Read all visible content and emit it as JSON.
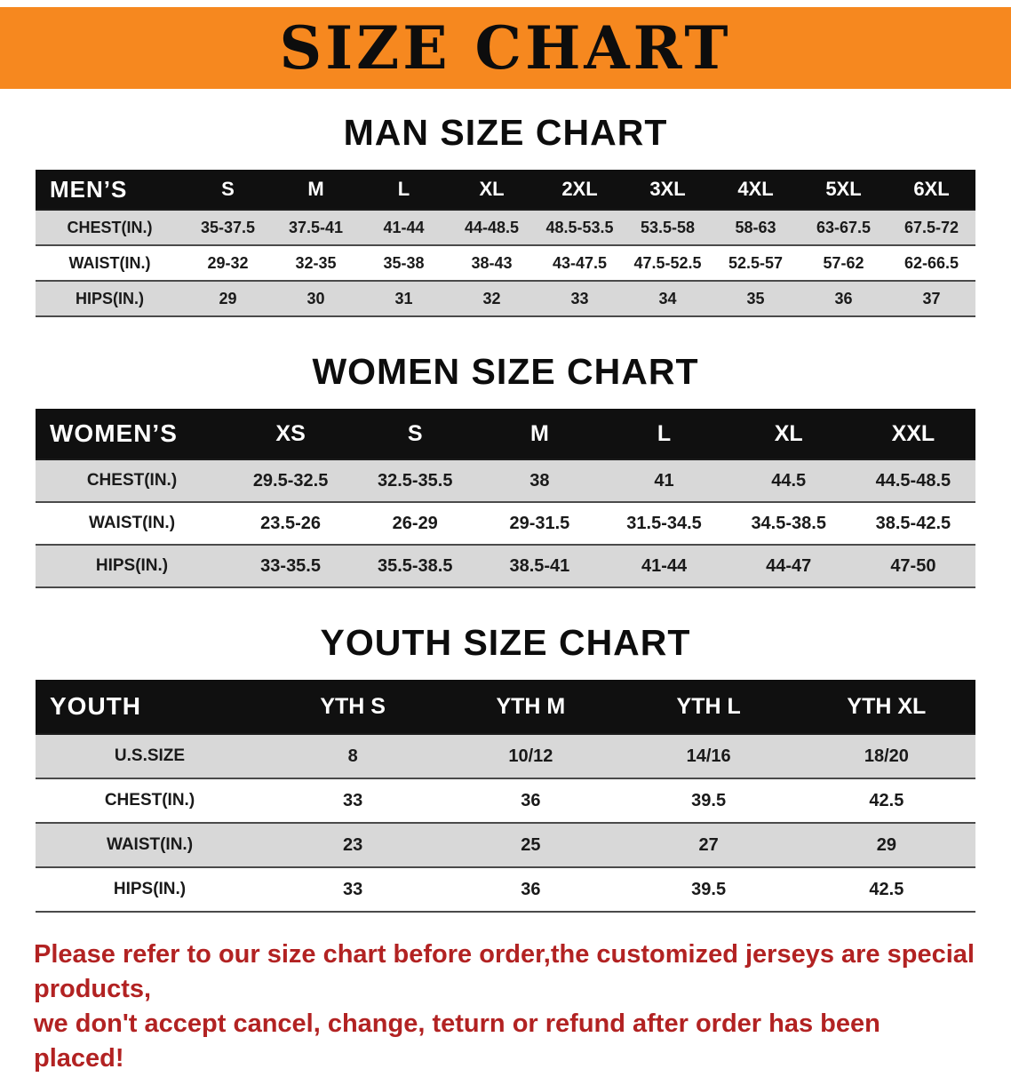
{
  "banner": {
    "title": "SIZE CHART"
  },
  "colors": {
    "banner_bg": "#f6881f",
    "header_bg": "#101010",
    "row_gray": "#d8d8d8",
    "footer_text": "#b22222"
  },
  "sections": [
    {
      "id": "men",
      "heading": "MAN SIZE CHART",
      "table": {
        "label": "MEN’S",
        "columns": [
          "S",
          "M",
          "L",
          "XL",
          "2XL",
          "3XL",
          "4XL",
          "5XL",
          "6XL"
        ],
        "rows": [
          {
            "label": "CHEST(IN.)",
            "values": [
              "35-37.5",
              "37.5-41",
              "41-44",
              "44-48.5",
              "48.5-53.5",
              "53.5-58",
              "58-63",
              "63-67.5",
              "67.5-72"
            ]
          },
          {
            "label": "WAIST(IN.)",
            "values": [
              "29-32",
              "32-35",
              "35-38",
              "38-43",
              "43-47.5",
              "47.5-52.5",
              "52.5-57",
              "57-62",
              "62-66.5"
            ]
          },
          {
            "label": "HIPS(IN.)",
            "values": [
              "29",
              "30",
              "31",
              "32",
              "33",
              "34",
              "35",
              "36",
              "37"
            ]
          }
        ]
      }
    },
    {
      "id": "women",
      "heading": "WOMEN SIZE CHART",
      "table": {
        "label": "WOMEN’S",
        "columns": [
          "XS",
          "S",
          "M",
          "L",
          "XL",
          "XXL"
        ],
        "rows": [
          {
            "label": "CHEST(IN.)",
            "values": [
              "29.5-32.5",
              "32.5-35.5",
              "38",
              "41",
              "44.5",
              "44.5-48.5"
            ]
          },
          {
            "label": "WAIST(IN.)",
            "values": [
              "23.5-26",
              "26-29",
              "29-31.5",
              "31.5-34.5",
              "34.5-38.5",
              "38.5-42.5"
            ]
          },
          {
            "label": "HIPS(IN.)",
            "values": [
              "33-35.5",
              "35.5-38.5",
              "38.5-41",
              "41-44",
              "44-47",
              "47-50"
            ]
          }
        ]
      }
    },
    {
      "id": "youth",
      "heading": "YOUTH SIZE CHART",
      "table": {
        "label": "YOUTH",
        "columns": [
          "YTH S",
          "YTH M",
          "YTH L",
          "YTH XL"
        ],
        "rows": [
          {
            "label": "U.S.SIZE",
            "values": [
              "8",
              "10/12",
              "14/16",
              "18/20"
            ]
          },
          {
            "label": "CHEST(IN.)",
            "values": [
              "33",
              "36",
              "39.5",
              "42.5"
            ]
          },
          {
            "label": "WAIST(IN.)",
            "values": [
              "23",
              "25",
              "27",
              "29"
            ]
          },
          {
            "label": "HIPS(IN.)",
            "values": [
              "33",
              "36",
              "39.5",
              "42.5"
            ]
          }
        ]
      }
    }
  ],
  "footer": {
    "line1": "Please refer to our size chart before order,the customized jerseys are special products,",
    "line2": "we don't accept cancel, change, teturn or refund after order has been placed!"
  }
}
